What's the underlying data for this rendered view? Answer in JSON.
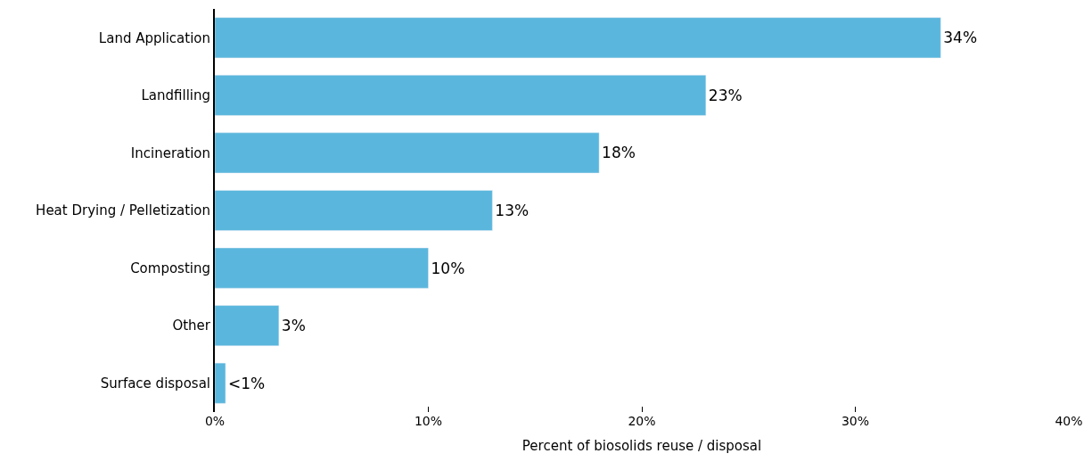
{
  "chart_data": {
    "type": "bar",
    "orientation": "horizontal",
    "xlabel": "Percent of biosolids reuse / disposal",
    "categories": [
      "Land Application",
      "Landfilling",
      "Incineration",
      "Heat Drying / Pelletization",
      "Composting",
      "Other",
      "Surface disposal"
    ],
    "values": [
      34,
      23,
      18,
      13,
      10,
      3,
      0.5
    ],
    "value_labels": [
      "34%",
      "23%",
      "18%",
      "13%",
      "10%",
      "3%",
      "<1%"
    ],
    "color": "#5ab6dc",
    "xlim": [
      0,
      40
    ],
    "xticks": [
      {
        "value": 0,
        "label": "0%"
      },
      {
        "value": 10,
        "label": "10%"
      },
      {
        "value": 20,
        "label": "20%"
      },
      {
        "value": 30,
        "label": "30%"
      },
      {
        "value": 40,
        "label": "40%"
      }
    ],
    "tick_labels": true
  }
}
